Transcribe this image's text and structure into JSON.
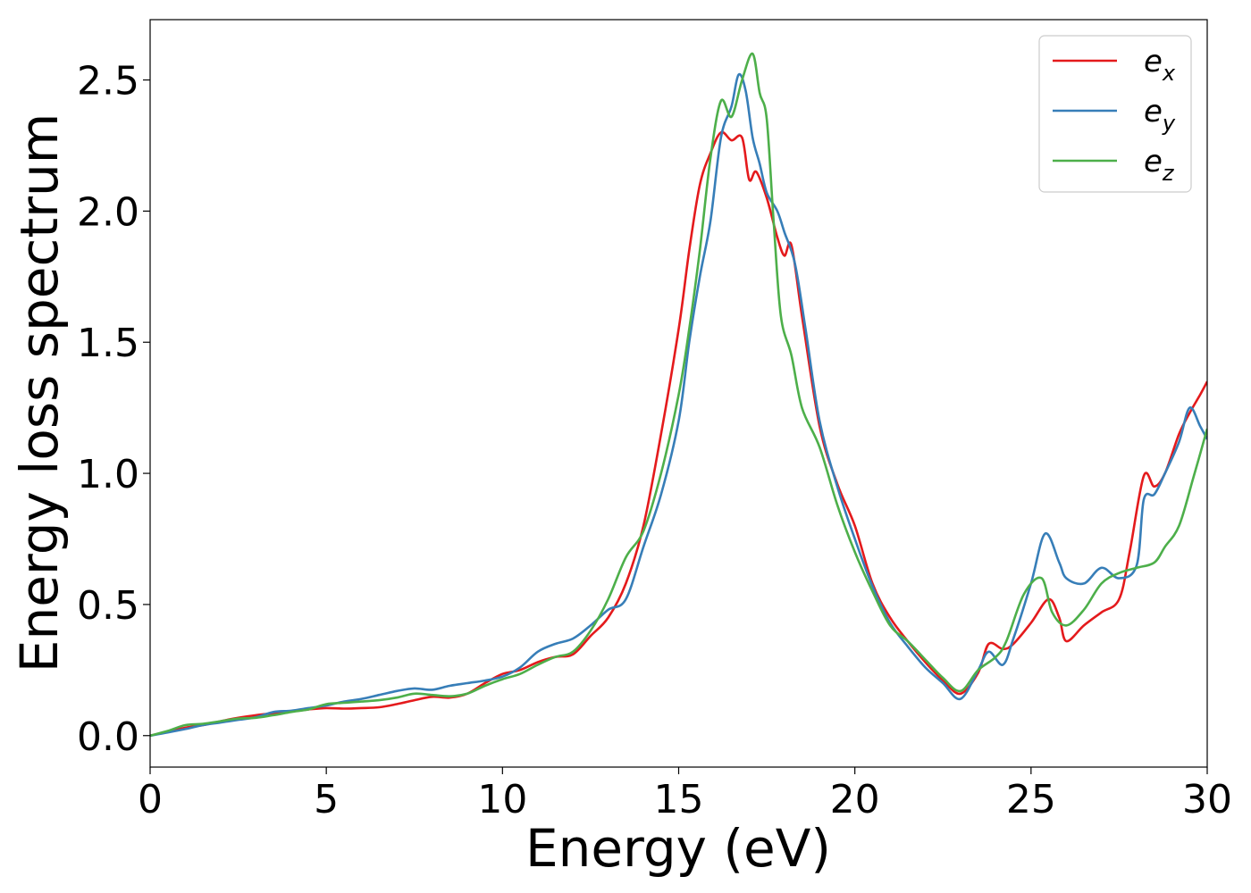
{
  "chart_data": {
    "type": "line",
    "xlabel": "Energy (eV)",
    "ylabel": "Energy loss spectrum",
    "xlim": [
      0,
      30
    ],
    "ylim": [
      -0.12,
      2.73
    ],
    "xticks": [
      0,
      5,
      10,
      15,
      20,
      25,
      30
    ],
    "yticks": [
      0.0,
      0.5,
      1.0,
      1.5,
      2.0,
      2.5
    ],
    "xtick_labels": [
      "0",
      "5",
      "10",
      "15",
      "20",
      "25",
      "30"
    ],
    "ytick_labels": [
      "0.0",
      "0.5",
      "1.0",
      "1.5",
      "2.0",
      "2.5"
    ],
    "grid": false,
    "legend": {
      "position": "top-right",
      "entries": [
        {
          "base": "e",
          "sub": "x"
        },
        {
          "base": "e",
          "sub": "y"
        },
        {
          "base": "e",
          "sub": "z"
        }
      ]
    },
    "series": [
      {
        "label": "e_x",
        "color": "#e41a1c",
        "points": [
          [
            0,
            0.0
          ],
          [
            0.5,
            0.015
          ],
          [
            1,
            0.03
          ],
          [
            1.5,
            0.04
          ],
          [
            2,
            0.055
          ],
          [
            2.5,
            0.068
          ],
          [
            3,
            0.078
          ],
          [
            3.5,
            0.085
          ],
          [
            4,
            0.092
          ],
          [
            4.5,
            0.1
          ],
          [
            5,
            0.105
          ],
          [
            5.5,
            0.103
          ],
          [
            6,
            0.105
          ],
          [
            6.5,
            0.108
          ],
          [
            7,
            0.12
          ],
          [
            7.5,
            0.135
          ],
          [
            8,
            0.148
          ],
          [
            8.5,
            0.145
          ],
          [
            9,
            0.16
          ],
          [
            9.5,
            0.2
          ],
          [
            10,
            0.235
          ],
          [
            10.5,
            0.25
          ],
          [
            11,
            0.28
          ],
          [
            11.5,
            0.3
          ],
          [
            12,
            0.31
          ],
          [
            12.5,
            0.38
          ],
          [
            13,
            0.45
          ],
          [
            13.5,
            0.58
          ],
          [
            14,
            0.8
          ],
          [
            14.5,
            1.15
          ],
          [
            15,
            1.55
          ],
          [
            15.3,
            1.85
          ],
          [
            15.6,
            2.1
          ],
          [
            15.9,
            2.22
          ],
          [
            16.2,
            2.3
          ],
          [
            16.5,
            2.27
          ],
          [
            16.8,
            2.28
          ],
          [
            17.0,
            2.12
          ],
          [
            17.2,
            2.15
          ],
          [
            17.5,
            2.05
          ],
          [
            17.8,
            1.9
          ],
          [
            18,
            1.83
          ],
          [
            18.2,
            1.87
          ],
          [
            18.5,
            1.6
          ],
          [
            19,
            1.18
          ],
          [
            19.5,
            0.96
          ],
          [
            20,
            0.8
          ],
          [
            20.5,
            0.58
          ],
          [
            21,
            0.45
          ],
          [
            21.5,
            0.36
          ],
          [
            22,
            0.28
          ],
          [
            22.5,
            0.21
          ],
          [
            23,
            0.16
          ],
          [
            23.5,
            0.24
          ],
          [
            23.8,
            0.35
          ],
          [
            24.2,
            0.33
          ],
          [
            24.5,
            0.35
          ],
          [
            25,
            0.43
          ],
          [
            25.5,
            0.52
          ],
          [
            25.8,
            0.45
          ],
          [
            26,
            0.36
          ],
          [
            26.5,
            0.42
          ],
          [
            27,
            0.47
          ],
          [
            27.5,
            0.52
          ],
          [
            27.8,
            0.7
          ],
          [
            28.2,
            0.99
          ],
          [
            28.5,
            0.95
          ],
          [
            28.8,
            1.0
          ],
          [
            29.2,
            1.15
          ],
          [
            29.5,
            1.23
          ],
          [
            29.8,
            1.3
          ],
          [
            30,
            1.35
          ]
        ]
      },
      {
        "label": "e_y",
        "color": "#377eb8",
        "points": [
          [
            0,
            0.0
          ],
          [
            0.5,
            0.012
          ],
          [
            1,
            0.025
          ],
          [
            1.5,
            0.04
          ],
          [
            2,
            0.05
          ],
          [
            2.5,
            0.06
          ],
          [
            3,
            0.07
          ],
          [
            3.5,
            0.09
          ],
          [
            4,
            0.095
          ],
          [
            4.5,
            0.105
          ],
          [
            5,
            0.115
          ],
          [
            5.5,
            0.13
          ],
          [
            6,
            0.14
          ],
          [
            6.5,
            0.155
          ],
          [
            7,
            0.17
          ],
          [
            7.5,
            0.18
          ],
          [
            8,
            0.175
          ],
          [
            8.5,
            0.19
          ],
          [
            9,
            0.2
          ],
          [
            9.5,
            0.21
          ],
          [
            10,
            0.225
          ],
          [
            10.5,
            0.26
          ],
          [
            11,
            0.32
          ],
          [
            11.5,
            0.35
          ],
          [
            12,
            0.37
          ],
          [
            12.5,
            0.42
          ],
          [
            13,
            0.48
          ],
          [
            13.5,
            0.52
          ],
          [
            14,
            0.72
          ],
          [
            14.5,
            0.92
          ],
          [
            15,
            1.2
          ],
          [
            15.3,
            1.5
          ],
          [
            15.6,
            1.75
          ],
          [
            15.9,
            1.96
          ],
          [
            16.2,
            2.28
          ],
          [
            16.5,
            2.4
          ],
          [
            16.7,
            2.52
          ],
          [
            16.9,
            2.46
          ],
          [
            17.1,
            2.28
          ],
          [
            17.3,
            2.18
          ],
          [
            17.5,
            2.07
          ],
          [
            17.8,
            2.0
          ],
          [
            18,
            1.92
          ],
          [
            18.3,
            1.8
          ],
          [
            18.6,
            1.55
          ],
          [
            19,
            1.2
          ],
          [
            19.5,
            0.95
          ],
          [
            20,
            0.75
          ],
          [
            20.5,
            0.57
          ],
          [
            21,
            0.43
          ],
          [
            21.5,
            0.34
          ],
          [
            22,
            0.26
          ],
          [
            22.5,
            0.2
          ],
          [
            23,
            0.14
          ],
          [
            23.5,
            0.25
          ],
          [
            23.8,
            0.32
          ],
          [
            24.2,
            0.27
          ],
          [
            24.5,
            0.37
          ],
          [
            25,
            0.58
          ],
          [
            25.4,
            0.77
          ],
          [
            25.8,
            0.66
          ],
          [
            26,
            0.6
          ],
          [
            26.5,
            0.58
          ],
          [
            27,
            0.64
          ],
          [
            27.5,
            0.6
          ],
          [
            28,
            0.65
          ],
          [
            28.2,
            0.9
          ],
          [
            28.5,
            0.92
          ],
          [
            28.8,
            1.0
          ],
          [
            29.2,
            1.12
          ],
          [
            29.5,
            1.25
          ],
          [
            29.8,
            1.18
          ],
          [
            30,
            1.13
          ]
        ]
      },
      {
        "label": "e_z",
        "color": "#4daf4a",
        "points": [
          [
            0,
            0.0
          ],
          [
            0.5,
            0.018
          ],
          [
            1,
            0.04
          ],
          [
            1.5,
            0.045
          ],
          [
            2,
            0.055
          ],
          [
            2.5,
            0.065
          ],
          [
            3,
            0.068
          ],
          [
            3.5,
            0.078
          ],
          [
            4,
            0.09
          ],
          [
            4.5,
            0.1
          ],
          [
            5,
            0.12
          ],
          [
            5.5,
            0.125
          ],
          [
            6,
            0.13
          ],
          [
            6.5,
            0.135
          ],
          [
            7,
            0.145
          ],
          [
            7.5,
            0.16
          ],
          [
            8,
            0.155
          ],
          [
            8.5,
            0.15
          ],
          [
            9,
            0.16
          ],
          [
            9.5,
            0.19
          ],
          [
            10,
            0.215
          ],
          [
            10.5,
            0.235
          ],
          [
            11,
            0.27
          ],
          [
            11.5,
            0.3
          ],
          [
            12,
            0.32
          ],
          [
            12.5,
            0.4
          ],
          [
            13,
            0.52
          ],
          [
            13.5,
            0.68
          ],
          [
            14,
            0.78
          ],
          [
            14.5,
            1.0
          ],
          [
            15,
            1.3
          ],
          [
            15.3,
            1.55
          ],
          [
            15.6,
            1.85
          ],
          [
            15.9,
            2.2
          ],
          [
            16.2,
            2.42
          ],
          [
            16.5,
            2.36
          ],
          [
            16.8,
            2.5
          ],
          [
            17.1,
            2.6
          ],
          [
            17.3,
            2.45
          ],
          [
            17.5,
            2.35
          ],
          [
            17.7,
            1.95
          ],
          [
            17.9,
            1.6
          ],
          [
            18.2,
            1.45
          ],
          [
            18.5,
            1.25
          ],
          [
            19,
            1.1
          ],
          [
            19.5,
            0.88
          ],
          [
            20,
            0.7
          ],
          [
            20.5,
            0.55
          ],
          [
            21,
            0.42
          ],
          [
            21.5,
            0.36
          ],
          [
            22,
            0.29
          ],
          [
            22.5,
            0.22
          ],
          [
            23,
            0.17
          ],
          [
            23.5,
            0.25
          ],
          [
            24,
            0.3
          ],
          [
            24.3,
            0.36
          ],
          [
            24.8,
            0.54
          ],
          [
            25.3,
            0.6
          ],
          [
            25.6,
            0.47
          ],
          [
            26,
            0.42
          ],
          [
            26.5,
            0.48
          ],
          [
            27,
            0.58
          ],
          [
            27.5,
            0.62
          ],
          [
            28,
            0.64
          ],
          [
            28.5,
            0.66
          ],
          [
            28.8,
            0.72
          ],
          [
            29.2,
            0.8
          ],
          [
            29.6,
            0.98
          ],
          [
            30,
            1.17
          ]
        ]
      }
    ]
  }
}
